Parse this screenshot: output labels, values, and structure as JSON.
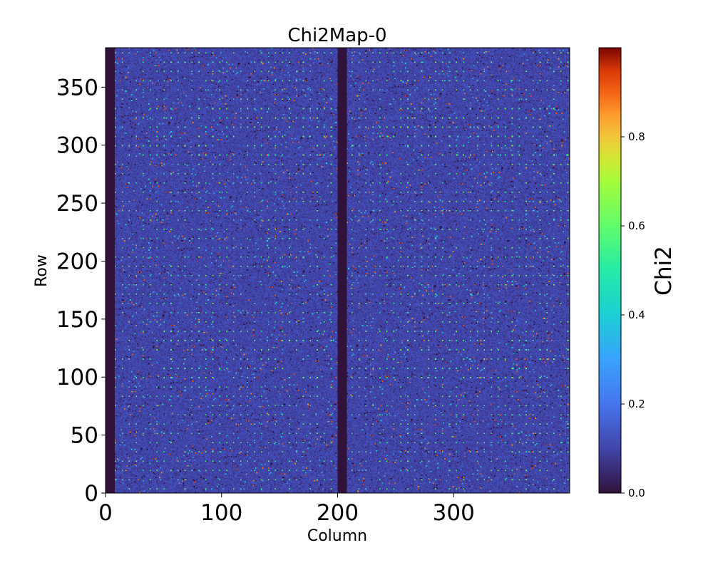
{
  "chart_data": {
    "type": "heatmap",
    "title": "Chi2Map-0",
    "xlabel": "Column",
    "ylabel": "Row",
    "xlim": [
      0,
      400
    ],
    "ylim": [
      0,
      384
    ],
    "x_ticks": [
      0,
      100,
      200,
      300
    ],
    "y_ticks": [
      0,
      50,
      100,
      150,
      200,
      250,
      300,
      350
    ],
    "colorbar": {
      "label": "Chi2",
      "range": [
        0.0,
        1.0
      ],
      "ticks": [
        0.0,
        0.2,
        0.4,
        0.6,
        0.8
      ],
      "tick_labels": [
        "0.0",
        "0.2",
        "0.4",
        "0.6",
        "0.8"
      ],
      "colormap": "turbo"
    },
    "background_value": 0.1,
    "dead_column_bands": [
      {
        "from_column": 0,
        "to_column": 8,
        "value": 0.0
      },
      {
        "from_column": 200,
        "to_column": 208,
        "value": 0.0
      }
    ],
    "bright_pixel_row_period": 8,
    "bright_pixel_column_period": 6,
    "bright_pixel_value": 0.5
  }
}
